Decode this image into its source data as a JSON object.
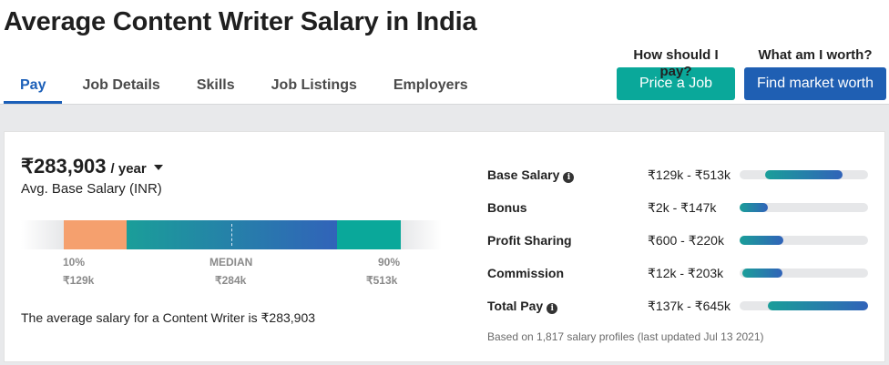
{
  "page": {
    "title": "Average Content Writer Salary in India"
  },
  "tabs": [
    {
      "label": "Pay",
      "active": true
    },
    {
      "label": "Job Details",
      "active": false
    },
    {
      "label": "Skills",
      "active": false
    },
    {
      "label": "Job Listings",
      "active": false
    },
    {
      "label": "Employers",
      "active": false
    }
  ],
  "cta": {
    "price": {
      "question": "How should I pay?",
      "button": "Price a Job"
    },
    "worth": {
      "question": "What am I worth?",
      "button": "Find market worth"
    }
  },
  "salary": {
    "amount": "₹283,903",
    "period": "/ year",
    "subtitle": "Avg. Base Salary (INR)",
    "sentence": "The average salary for a Content Writer is ₹283,903"
  },
  "range": {
    "p10_label": "10%",
    "median_label": "MEDIAN",
    "p90_label": "90%",
    "p10_value": "₹129k",
    "median_value": "₹284k",
    "p90_value": "₹513k"
  },
  "breakdown": [
    {
      "label": "Base Salary",
      "info": true,
      "range": "₹129k - ₹513k",
      "start": 0.2,
      "end": 0.8
    },
    {
      "label": "Bonus",
      "info": false,
      "range": "₹2k - ₹147k",
      "start": 0.0,
      "end": 0.22
    },
    {
      "label": "Profit Sharing",
      "info": false,
      "range": "₹600 - ₹220k",
      "start": 0.0,
      "end": 0.34
    },
    {
      "label": "Commission",
      "info": false,
      "range": "₹12k - ₹203k",
      "start": 0.02,
      "end": 0.33
    },
    {
      "label": "Total Pay",
      "info": true,
      "range": "₹137k - ₹645k",
      "start": 0.22,
      "end": 1.0
    }
  ],
  "footnote": "Based on 1,817 salary profiles (last updated Jul 13 2021)",
  "colors": {
    "accent_blue": "#1b5fb8",
    "teal": "#0aa89a",
    "orange": "#f5a06e"
  }
}
